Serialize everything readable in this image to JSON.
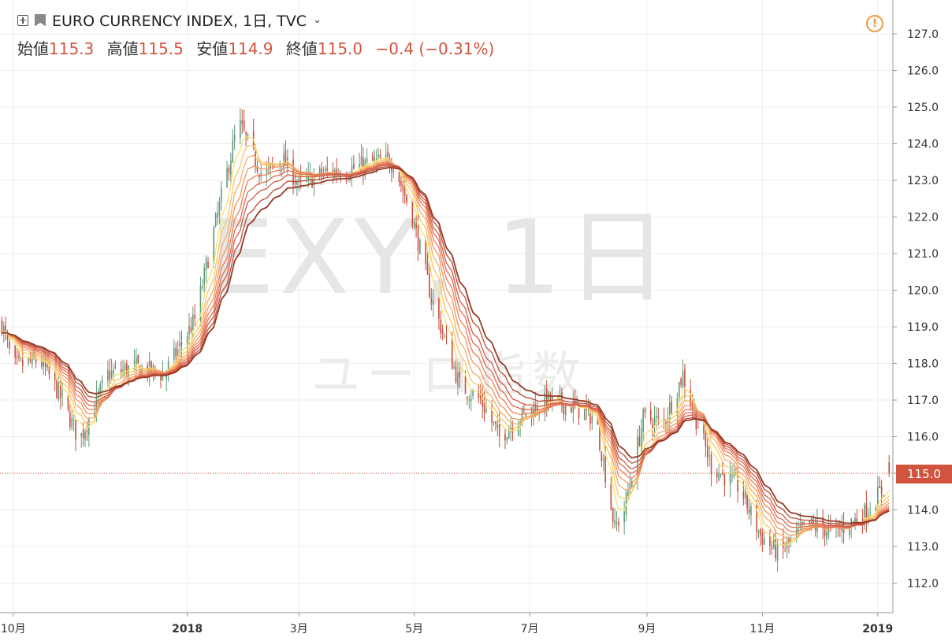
{
  "header": {
    "title": "EURO CURRENCY INDEX, 1日, TVC",
    "ohlc": [
      {
        "label": "始値",
        "value": "115.3"
      },
      {
        "label": "高値",
        "value": "115.5"
      },
      {
        "label": "安値",
        "value": "114.9"
      },
      {
        "label": "終値",
        "value": "115.0"
      }
    ],
    "change": "−0.4 (−0.31%)",
    "alert_icon": "exclamation-circle-icon",
    "add_icon": "plus-box-icon",
    "flag_icon": "flag-icon"
  },
  "watermark": {
    "main": "EXY, 1日",
    "sub": "ユーロ指数"
  },
  "last_price_label": "115.0",
  "colors": {
    "up": "#5f9a78",
    "down": "#c94b3c",
    "accent": "#d1543f",
    "alert": "#f0973a",
    "ma_ramp": [
      "#f8df6e",
      "#f7c66a",
      "#f5ae65",
      "#f19660",
      "#ea7e59",
      "#e06a50",
      "#d15845",
      "#b84936",
      "#963a27"
    ]
  },
  "chart_data": {
    "type": "candlestick",
    "title": "EURO CURRENCY INDEX, 1日, TVC",
    "last_close": 115.0,
    "ylim": [
      111.5,
      127.7
    ],
    "yticks": [
      "127.0",
      "126.0",
      "125.0",
      "124.0",
      "123.0",
      "122.0",
      "121.0",
      "120.0",
      "119.0",
      "118.0",
      "117.0",
      "116.0",
      "115.0",
      "114.0",
      "113.0",
      "112.0"
    ],
    "xlim": [
      "2017-09-24",
      "2019-01-09"
    ],
    "xticks": [
      {
        "label": "10月",
        "date": "2017-10-01",
        "bold": false
      },
      {
        "label": "2018",
        "date": "2018-01-01",
        "bold": true
      },
      {
        "label": "3月",
        "date": "2018-03-01",
        "bold": false
      },
      {
        "label": "5月",
        "date": "2018-05-01",
        "bold": false
      },
      {
        "label": "7月",
        "date": "2018-07-01",
        "bold": false
      },
      {
        "label": "9月",
        "date": "2018-09-01",
        "bold": false
      },
      {
        "label": "11月",
        "date": "2018-11-01",
        "bold": false
      },
      {
        "label": "2019",
        "date": "2019-01-01",
        "bold": true
      }
    ],
    "grid": true,
    "close_path": [
      [
        "2017-09-25",
        119.1
      ],
      [
        "2017-10-01",
        117.9
      ],
      [
        "2017-10-15",
        118.1
      ],
      [
        "2017-10-25",
        117.2
      ],
      [
        "2017-11-05",
        115.9
      ],
      [
        "2017-11-20",
        117.7
      ],
      [
        "2017-12-05",
        117.9
      ],
      [
        "2017-12-20",
        117.7
      ],
      [
        "2018-01-05",
        119.2
      ],
      [
        "2018-01-15",
        121.6
      ],
      [
        "2018-01-28",
        124.6
      ],
      [
        "2018-02-10",
        123.1
      ],
      [
        "2018-02-20",
        123.6
      ],
      [
        "2018-03-01",
        122.9
      ],
      [
        "2018-03-15",
        123.2
      ],
      [
        "2018-03-28",
        123.3
      ],
      [
        "2018-04-10",
        123.5
      ],
      [
        "2018-04-20",
        123.5
      ],
      [
        "2018-04-30",
        122.0
      ],
      [
        "2018-05-10",
        119.8
      ],
      [
        "2018-05-25",
        117.4
      ],
      [
        "2018-06-05",
        117.0
      ],
      [
        "2018-06-15",
        116.0
      ],
      [
        "2018-06-25",
        116.5
      ],
      [
        "2018-07-10",
        117.0
      ],
      [
        "2018-07-25",
        116.8
      ],
      [
        "2018-08-05",
        116.5
      ],
      [
        "2018-08-15",
        113.5
      ],
      [
        "2018-08-20",
        114.0
      ],
      [
        "2018-08-30",
        116.5
      ],
      [
        "2018-09-10",
        116.4
      ],
      [
        "2018-09-20",
        117.7
      ],
      [
        "2018-09-25",
        116.8
      ],
      [
        "2018-10-05",
        115.2
      ],
      [
        "2018-10-20",
        114.6
      ],
      [
        "2018-10-31",
        113.3
      ],
      [
        "2018-11-10",
        112.8
      ],
      [
        "2018-11-25",
        113.6
      ],
      [
        "2018-12-10",
        113.4
      ],
      [
        "2018-12-25",
        113.9
      ],
      [
        "2019-01-04",
        114.6
      ],
      [
        "2019-01-07",
        115.0
      ]
    ],
    "indicators": [
      {
        "type": "moving-average-ribbon",
        "lines": 9
      }
    ]
  }
}
